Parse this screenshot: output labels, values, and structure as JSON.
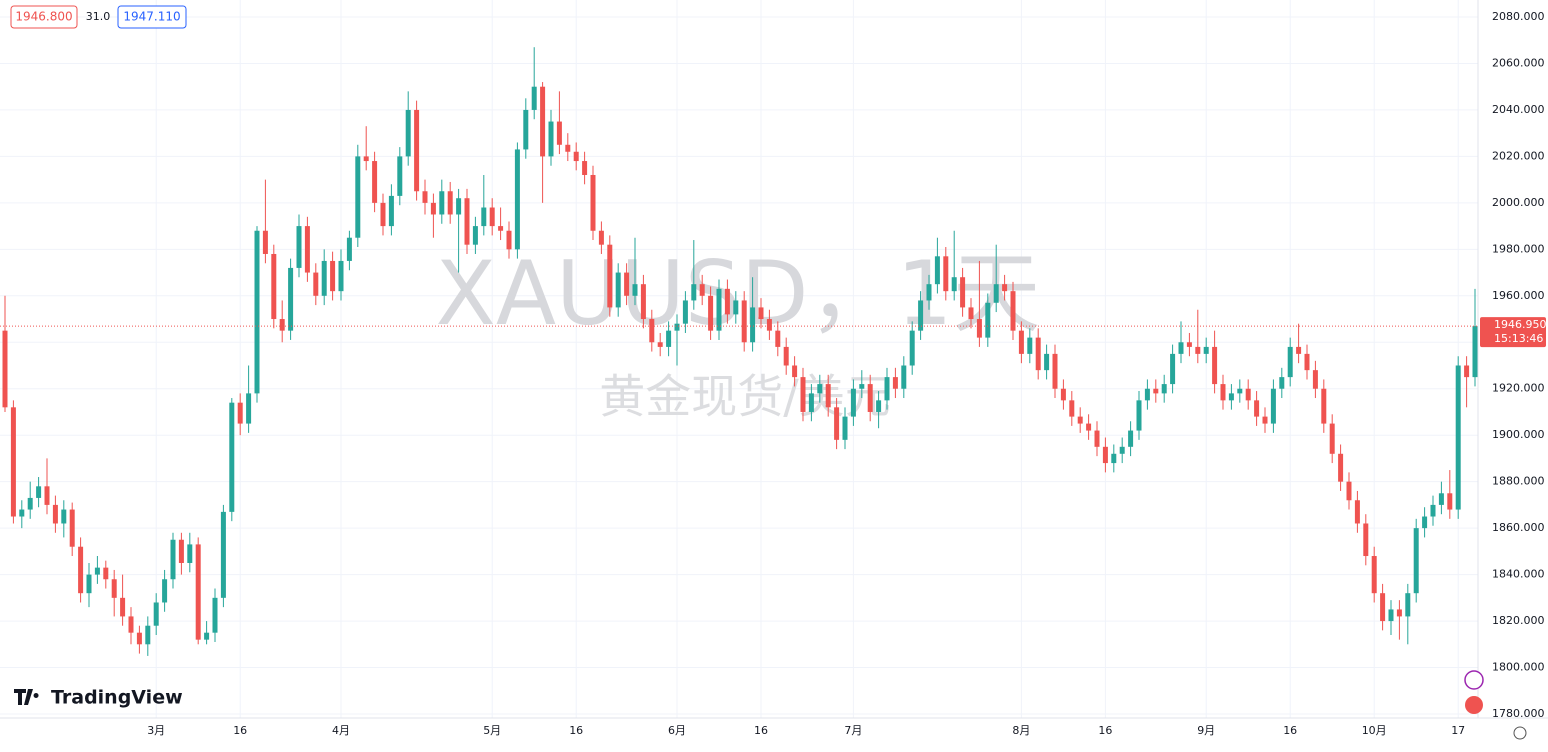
{
  "chart_data": {
    "type": "candlestick",
    "header": {
      "bid": "1946.800",
      "spread": "31.0",
      "ask": "1947.110"
    },
    "watermark": {
      "symbol": "XAUUSD，1天",
      "description": "黄金现货/美元"
    },
    "brand": "TradingView",
    "up_color": "#26a69a",
    "down_color": "#ef5350",
    "last_price": {
      "value": 1946.95,
      "label": "1946.950"
    },
    "countdown": "15:13:46",
    "ylim": [
      1780,
      2080
    ],
    "yticks": [
      {
        "value": 1780,
        "label": "1780.000"
      },
      {
        "value": 1800,
        "label": "1800.000"
      },
      {
        "value": 1820,
        "label": "1820.000"
      },
      {
        "value": 1840,
        "label": "1840.000"
      },
      {
        "value": 1860,
        "label": "1860.000"
      },
      {
        "value": 1880,
        "label": "1880.000"
      },
      {
        "value": 1900,
        "label": "1900.000"
      },
      {
        "value": 1920,
        "label": "1920.000"
      },
      {
        "value": 1940,
        "label": "1940.000"
      },
      {
        "value": 1960,
        "label": "1960.000"
      },
      {
        "value": 1980,
        "label": "1980.000"
      },
      {
        "value": 2000,
        "label": "2000.000"
      },
      {
        "value": 2020,
        "label": "2020.000"
      },
      {
        "value": 2040,
        "label": "2040.000"
      },
      {
        "value": 2060,
        "label": "2060.000"
      },
      {
        "value": 2080,
        "label": "2080.000"
      }
    ],
    "xlim": [
      0,
      176
    ],
    "xticks": [
      {
        "value": 18,
        "label": "3月"
      },
      {
        "value": 28,
        "label": "16"
      },
      {
        "value": 40,
        "label": "4月"
      },
      {
        "value": 58,
        "label": "5月"
      },
      {
        "value": 68,
        "label": "16"
      },
      {
        "value": 80,
        "label": "6月"
      },
      {
        "value": 90,
        "label": "16"
      },
      {
        "value": 101,
        "label": "7月"
      },
      {
        "value": 121,
        "label": "8月"
      },
      {
        "value": 131,
        "label": "16"
      },
      {
        "value": 143,
        "label": "9月"
      },
      {
        "value": 153,
        "label": "16"
      },
      {
        "value": 163,
        "label": "10月"
      },
      {
        "value": 173,
        "label": "17"
      }
    ],
    "grid": true,
    "candles": [
      [
        1945,
        1960,
        1910,
        1912
      ],
      [
        1912,
        1915,
        1862,
        1865
      ],
      [
        1865,
        1872,
        1860,
        1868
      ],
      [
        1868,
        1880,
        1864,
        1873
      ],
      [
        1873,
        1882,
        1869,
        1878
      ],
      [
        1878,
        1890,
        1866,
        1870
      ],
      [
        1870,
        1874,
        1858,
        1862
      ],
      [
        1862,
        1872,
        1856,
        1868
      ],
      [
        1868,
        1871,
        1848,
        1852
      ],
      [
        1852,
        1856,
        1828,
        1832
      ],
      [
        1832,
        1845,
        1826,
        1840
      ],
      [
        1840,
        1848,
        1836,
        1843
      ],
      [
        1843,
        1846,
        1834,
        1838
      ],
      [
        1838,
        1842,
        1822,
        1830
      ],
      [
        1830,
        1840,
        1818,
        1822
      ],
      [
        1822,
        1826,
        1810,
        1815
      ],
      [
        1815,
        1818,
        1806,
        1810
      ],
      [
        1810,
        1822,
        1805,
        1818
      ],
      [
        1818,
        1832,
        1814,
        1828
      ],
      [
        1828,
        1842,
        1824,
        1838
      ],
      [
        1838,
        1858,
        1834,
        1855
      ],
      [
        1855,
        1858,
        1840,
        1845
      ],
      [
        1845,
        1858,
        1841,
        1853
      ],
      [
        1853,
        1856,
        1810,
        1812
      ],
      [
        1812,
        1820,
        1810,
        1815
      ],
      [
        1815,
        1834,
        1811,
        1830
      ],
      [
        1830,
        1870,
        1826,
        1867
      ],
      [
        1867,
        1916,
        1863,
        1914
      ],
      [
        1914,
        1918,
        1900,
        1905
      ],
      [
        1905,
        1930,
        1901,
        1918
      ],
      [
        1918,
        1990,
        1914,
        1988
      ],
      [
        1988,
        2010,
        1974,
        1978
      ],
      [
        1978,
        1982,
        1946,
        1950
      ],
      [
        1950,
        1958,
        1940,
        1945
      ],
      [
        1945,
        1976,
        1941,
        1972
      ],
      [
        1972,
        1995,
        1968,
        1990
      ],
      [
        1990,
        1994,
        1966,
        1970
      ],
      [
        1970,
        1974,
        1956,
        1960
      ],
      [
        1960,
        1980,
        1956,
        1975
      ],
      [
        1975,
        1979,
        1958,
        1962
      ],
      [
        1962,
        1980,
        1958,
        1975
      ],
      [
        1975,
        1988,
        1971,
        1985
      ],
      [
        1985,
        2025,
        1981,
        2020
      ],
      [
        2020,
        2033,
        2014,
        2018
      ],
      [
        2018,
        2022,
        1996,
        2000
      ],
      [
        2000,
        2004,
        1986,
        1990
      ],
      [
        1990,
        2008,
        1986,
        2003
      ],
      [
        2003,
        2024,
        1999,
        2020
      ],
      [
        2020,
        2048,
        2016,
        2040
      ],
      [
        2040,
        2044,
        2001,
        2005
      ],
      [
        2005,
        2010,
        1995,
        2000
      ],
      [
        2000,
        2004,
        1985,
        1995
      ],
      [
        1995,
        2010,
        1991,
        2005
      ],
      [
        2005,
        2009,
        1991,
        1995
      ],
      [
        1995,
        2006,
        1970,
        2002
      ],
      [
        2002,
        2006,
        1978,
        1982
      ],
      [
        1982,
        1994,
        1978,
        1990
      ],
      [
        1990,
        2012,
        1986,
        1998
      ],
      [
        1998,
        2002,
        1986,
        1990
      ],
      [
        1990,
        1998,
        1984,
        1988
      ],
      [
        1988,
        1992,
        1976,
        1980
      ],
      [
        1980,
        2026,
        1976,
        2023
      ],
      [
        2023,
        2045,
        2019,
        2040
      ],
      [
        2040,
        2067,
        2036,
        2050
      ],
      [
        2050,
        2052,
        2000,
        2020
      ],
      [
        2020,
        2040,
        2016,
        2035
      ],
      [
        2035,
        2048,
        2021,
        2025
      ],
      [
        2025,
        2030,
        2018,
        2022
      ],
      [
        2022,
        2026,
        2014,
        2018
      ],
      [
        2018,
        2022,
        2008,
        2012
      ],
      [
        2012,
        2016,
        1984,
        1988
      ],
      [
        1988,
        1992,
        1978,
        1982
      ],
      [
        1982,
        1986,
        1951,
        1955
      ],
      [
        1955,
        1974,
        1951,
        1970
      ],
      [
        1970,
        1974,
        1956,
        1960
      ],
      [
        1960,
        1985,
        1956,
        1965
      ],
      [
        1965,
        1969,
        1946,
        1950
      ],
      [
        1950,
        1954,
        1936,
        1940
      ],
      [
        1940,
        1944,
        1934,
        1938
      ],
      [
        1938,
        1949,
        1934,
        1945
      ],
      [
        1945,
        1952,
        1930,
        1948
      ],
      [
        1948,
        1962,
        1944,
        1958
      ],
      [
        1958,
        1984,
        1954,
        1965
      ],
      [
        1965,
        1969,
        1956,
        1960
      ],
      [
        1960,
        1964,
        1941,
        1945
      ],
      [
        1945,
        1967,
        1941,
        1963
      ],
      [
        1963,
        1967,
        1948,
        1952
      ],
      [
        1952,
        1962,
        1948,
        1958
      ],
      [
        1958,
        1962,
        1936,
        1940
      ],
      [
        1940,
        1968,
        1936,
        1955
      ],
      [
        1955,
        1959,
        1946,
        1950
      ],
      [
        1950,
        1954,
        1941,
        1945
      ],
      [
        1945,
        1949,
        1934,
        1938
      ],
      [
        1938,
        1942,
        1926,
        1930
      ],
      [
        1930,
        1934,
        1921,
        1925
      ],
      [
        1925,
        1929,
        1906,
        1910
      ],
      [
        1910,
        1922,
        1906,
        1918
      ],
      [
        1918,
        1926,
        1914,
        1922
      ],
      [
        1922,
        1926,
        1908,
        1912
      ],
      [
        1912,
        1916,
        1894,
        1898
      ],
      [
        1898,
        1912,
        1894,
        1908
      ],
      [
        1908,
        1924,
        1904,
        1920
      ],
      [
        1920,
        1928,
        1916,
        1922
      ],
      [
        1922,
        1926,
        1906,
        1910
      ],
      [
        1910,
        1919,
        1903,
        1915
      ],
      [
        1915,
        1929,
        1911,
        1925
      ],
      [
        1925,
        1929,
        1916,
        1920
      ],
      [
        1920,
        1934,
        1916,
        1930
      ],
      [
        1930,
        1949,
        1926,
        1945
      ],
      [
        1945,
        1962,
        1941,
        1958
      ],
      [
        1958,
        1969,
        1954,
        1965
      ],
      [
        1965,
        1985,
        1961,
        1977
      ],
      [
        1977,
        1981,
        1958,
        1962
      ],
      [
        1962,
        1988,
        1958,
        1968
      ],
      [
        1968,
        1972,
        1951,
        1955
      ],
      [
        1955,
        1959,
        1946,
        1950
      ],
      [
        1950,
        1975,
        1938,
        1942
      ],
      [
        1942,
        1961,
        1938,
        1957
      ],
      [
        1957,
        1982,
        1953,
        1965
      ],
      [
        1965,
        1969,
        1958,
        1962
      ],
      [
        1962,
        1966,
        1941,
        1945
      ],
      [
        1945,
        1949,
        1931,
        1935
      ],
      [
        1935,
        1946,
        1931,
        1942
      ],
      [
        1942,
        1946,
        1924,
        1928
      ],
      [
        1928,
        1939,
        1924,
        1935
      ],
      [
        1935,
        1939,
        1916,
        1920
      ],
      [
        1920,
        1924,
        1911,
        1915
      ],
      [
        1915,
        1919,
        1904,
        1908
      ],
      [
        1908,
        1912,
        1901,
        1905
      ],
      [
        1905,
        1909,
        1898,
        1902
      ],
      [
        1902,
        1906,
        1891,
        1895
      ],
      [
        1895,
        1899,
        1884,
        1888
      ],
      [
        1888,
        1896,
        1884,
        1892
      ],
      [
        1892,
        1899,
        1888,
        1895
      ],
      [
        1895,
        1906,
        1891,
        1902
      ],
      [
        1902,
        1919,
        1898,
        1915
      ],
      [
        1915,
        1924,
        1911,
        1920
      ],
      [
        1920,
        1924,
        1914,
        1918
      ],
      [
        1918,
        1926,
        1914,
        1922
      ],
      [
        1922,
        1939,
        1918,
        1935
      ],
      [
        1935,
        1949,
        1931,
        1940
      ],
      [
        1940,
        1944,
        1934,
        1938
      ],
      [
        1938,
        1954,
        1931,
        1935
      ],
      [
        1935,
        1942,
        1931,
        1938
      ],
      [
        1938,
        1945,
        1918,
        1922
      ],
      [
        1922,
        1926,
        1911,
        1915
      ],
      [
        1915,
        1922,
        1911,
        1918
      ],
      [
        1918,
        1924,
        1914,
        1920
      ],
      [
        1920,
        1924,
        1911,
        1915
      ],
      [
        1915,
        1919,
        1904,
        1908
      ],
      [
        1908,
        1912,
        1901,
        1905
      ],
      [
        1905,
        1924,
        1901,
        1920
      ],
      [
        1920,
        1929,
        1916,
        1925
      ],
      [
        1925,
        1942,
        1921,
        1938
      ],
      [
        1938,
        1948,
        1931,
        1935
      ],
      [
        1935,
        1939,
        1924,
        1928
      ],
      [
        1928,
        1932,
        1916,
        1920
      ],
      [
        1920,
        1924,
        1901,
        1905
      ],
      [
        1905,
        1909,
        1888,
        1892
      ],
      [
        1892,
        1896,
        1876,
        1880
      ],
      [
        1880,
        1884,
        1868,
        1872
      ],
      [
        1872,
        1876,
        1858,
        1862
      ],
      [
        1862,
        1866,
        1844,
        1848
      ],
      [
        1848,
        1852,
        1828,
        1832
      ],
      [
        1832,
        1836,
        1816,
        1820
      ],
      [
        1820,
        1829,
        1814,
        1825
      ],
      [
        1825,
        1829,
        1812,
        1822
      ],
      [
        1822,
        1836,
        1810,
        1832
      ],
      [
        1832,
        1864,
        1828,
        1860
      ],
      [
        1860,
        1869,
        1856,
        1865
      ],
      [
        1865,
        1874,
        1861,
        1870
      ],
      [
        1870,
        1880,
        1866,
        1875
      ],
      [
        1875,
        1885,
        1864,
        1868
      ],
      [
        1868,
        1934,
        1864,
        1930
      ],
      [
        1930,
        1934,
        1912,
        1925
      ],
      [
        1925,
        1963,
        1921,
        1946.95
      ]
    ]
  }
}
